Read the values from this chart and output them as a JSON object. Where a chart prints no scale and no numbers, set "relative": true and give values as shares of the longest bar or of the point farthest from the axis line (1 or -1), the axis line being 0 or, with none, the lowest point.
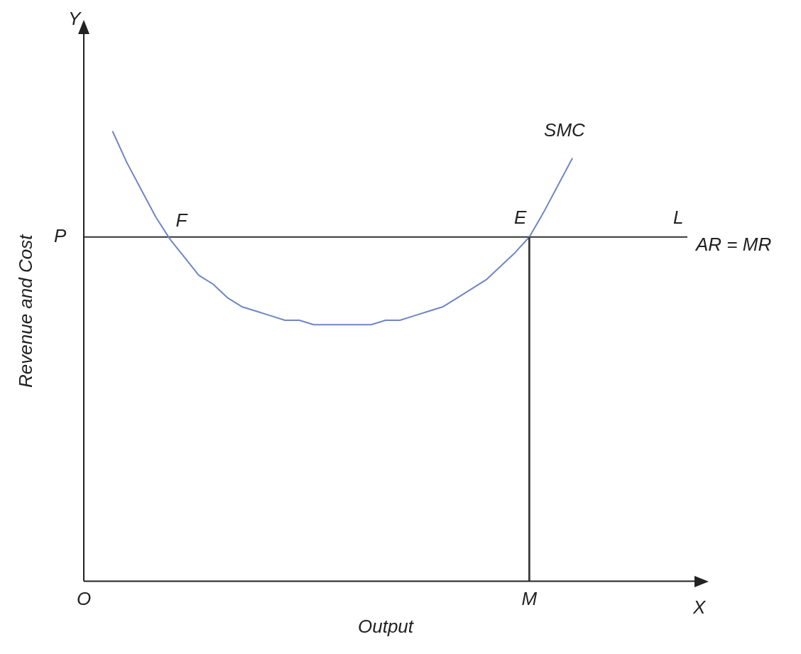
{
  "chart_data": {
    "type": "line",
    "relative": true,
    "xlabel": "Output",
    "ylabel": "Revenue and Cost",
    "legend": false,
    "categories": [
      "O",
      null,
      null,
      null,
      null,
      null,
      null,
      null,
      null,
      null,
      null,
      null,
      null,
      null,
      null,
      null,
      null,
      null,
      null,
      null,
      null,
      null,
      null,
      null,
      null,
      null,
      null,
      null,
      null,
      null,
      null,
      "M",
      null,
      null,
      null,
      null,
      null,
      null,
      null,
      null,
      null,
      null,
      null
    ],
    "series": [
      {
        "name": "SMC",
        "color": "#6f86c4",
        "values": [
          null,
          null,
          1,
          0.93,
          0.87,
          0.81,
          0.76,
          0.72,
          0.68,
          0.66,
          0.63,
          0.61,
          0.6,
          0.59,
          0.58,
          0.58,
          0.57,
          0.57,
          0.57,
          0.57,
          0.57,
          0.58,
          0.58,
          0.59,
          0.6,
          0.61,
          0.63,
          0.65,
          0.67,
          0.7,
          0.73,
          0.765,
          0.82,
          0.88,
          0.94,
          null,
          null,
          null,
          null,
          null,
          null,
          null,
          null
        ]
      },
      {
        "name": "AR = MR",
        "color": "#333333",
        "values": [
          0.765,
          0.765,
          0.765,
          0.765,
          0.765,
          0.765,
          0.765,
          0.765,
          0.765,
          0.765,
          0.765,
          0.765,
          0.765,
          0.765,
          0.765,
          0.765,
          0.765,
          0.765,
          0.765,
          0.765,
          0.765,
          0.765,
          0.765,
          0.765,
          0.765,
          0.765,
          0.765,
          0.765,
          0.765,
          0.765,
          0.765,
          0.765,
          0.765,
          0.765,
          0.765,
          0.765,
          0.765,
          0.765,
          0.765,
          0.765,
          0.765,
          0.765,
          0.765
        ]
      },
      {
        "type": "bar",
        "color": "#333333",
        "values": [
          null,
          null,
          null,
          null,
          null,
          null,
          null,
          null,
          null,
          null,
          null,
          null,
          null,
          null,
          null,
          null,
          null,
          null,
          null,
          null,
          null,
          null,
          null,
          null,
          null,
          null,
          null,
          null,
          null,
          null,
          null,
          0.765,
          null,
          null,
          null,
          null,
          null,
          null,
          null,
          null,
          null,
          null,
          null
        ]
      }
    ],
    "annotations": [
      "Y",
      "X",
      "F",
      "L",
      "P",
      {
        "text": "E",
        "x": "M",
        "y": 0.765
      }
    ]
  }
}
